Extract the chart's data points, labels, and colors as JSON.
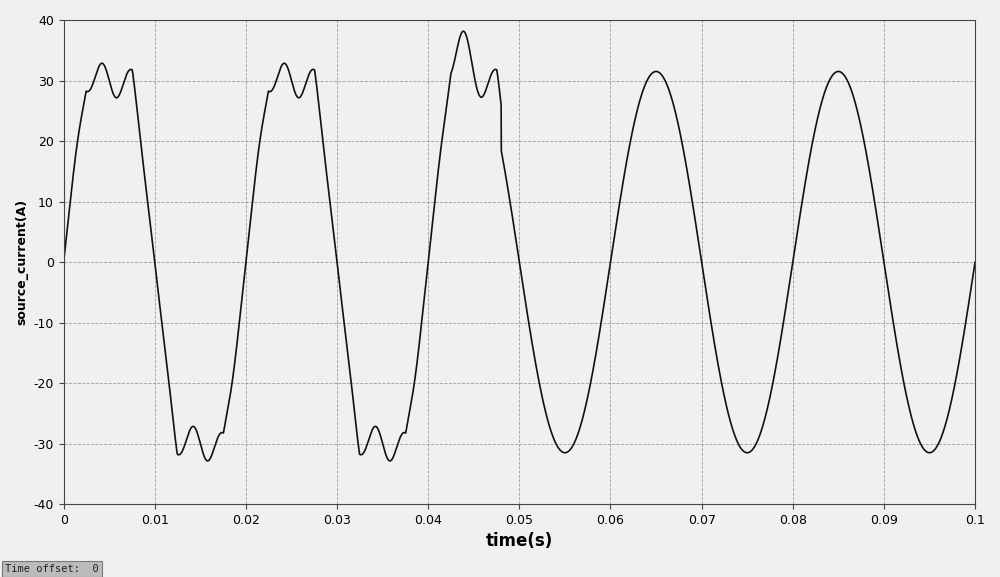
{
  "xlabel": "time(s)",
  "ylabel": "source_current(A)",
  "xlim": [
    0,
    0.1
  ],
  "ylim": [
    -40,
    40
  ],
  "yticks": [
    -40,
    -30,
    -20,
    -10,
    0,
    10,
    20,
    30,
    40
  ],
  "xticks": [
    0,
    0.01,
    0.02,
    0.03,
    0.04,
    0.05,
    0.06,
    0.07,
    0.08,
    0.09,
    0.1
  ],
  "xtick_labels": [
    "0",
    "0.01",
    "0.02",
    "0.03",
    "0.04",
    "0.05",
    "0.06",
    "0.07",
    "0.08",
    "0.09",
    "0.1"
  ],
  "line_color": "#111111",
  "line_width": 1.2,
  "bg_color": "#f0f0f0",
  "grid_color": "#888888",
  "amplitude_distorted": 30.0,
  "amplitude_sine": 31.5,
  "freq": 50,
  "transition_time": 0.048,
  "time_offset_label": "Time offset:  0",
  "xlabel_fontsize": 12,
  "ylabel_fontsize": 9,
  "tick_fontsize": 9
}
